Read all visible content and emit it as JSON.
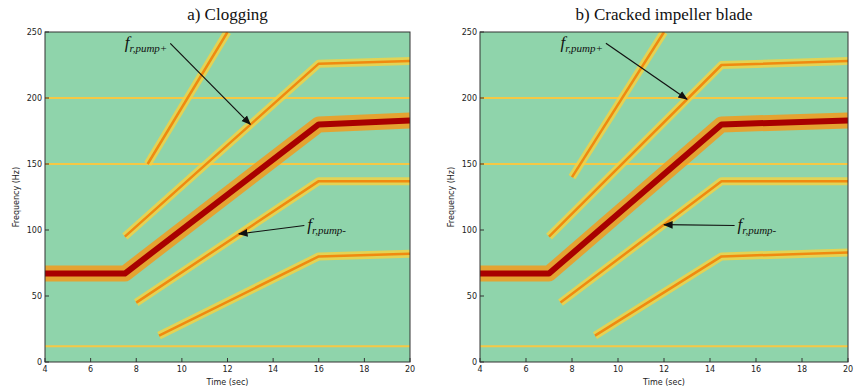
{
  "chart_data": [
    {
      "type": "spectrogram",
      "title": "a) Clogging",
      "x_label": "Time (sec)",
      "y_label": "Frequency (Hz)",
      "xlim": [
        4,
        20
      ],
      "xticks": [
        4,
        6,
        8,
        10,
        12,
        14,
        16,
        18,
        20
      ],
      "ylim": [
        0,
        250
      ],
      "yticks": [
        0,
        50,
        100,
        150,
        200,
        250
      ],
      "series": [
        {
          "color": "#f5c845",
          "line_style": "thin",
          "x": [
            4,
            20
          ],
          "values": [
            12,
            12
          ]
        },
        {
          "color": "#f5c845",
          "line_style": "thin",
          "x": [
            4,
            20
          ],
          "values": [
            150,
            150
          ]
        },
        {
          "color": "#f5c845",
          "line_style": "thin",
          "x": [
            4,
            20
          ],
          "values": [
            200,
            200
          ]
        },
        {
          "color": "#f08a10",
          "line_style": "medium",
          "x": [
            8.5,
            12
          ],
          "values": [
            150,
            250
          ]
        },
        {
          "color": "#f08a10",
          "line_style": "medium",
          "x": [
            9,
            16,
            20
          ],
          "values": [
            20,
            80,
            82
          ]
        },
        {
          "color": "#f08a10",
          "line_style": "medium",
          "x": [
            8,
            16,
            20
          ],
          "values": [
            45,
            137,
            137
          ]
        },
        {
          "color": "#f08a10",
          "line_style": "medium",
          "x": [
            7.5,
            16,
            20
          ],
          "values": [
            95,
            226,
            228
          ]
        },
        {
          "color": "#a80000",
          "line_style": "thick",
          "x": [
            4,
            7.5,
            16,
            20
          ],
          "values": [
            67,
            67,
            180,
            183
          ]
        }
      ],
      "annotations": [
        {
          "text": "f",
          "subscript": "r,pump+",
          "x": 7.5,
          "y": 238,
          "target_x": 13,
          "target_y": 180
        },
        {
          "text": "f",
          "subscript": "r,pump-",
          "x": 15.5,
          "y": 100,
          "target_x": 12.5,
          "target_y": 97
        }
      ]
    },
    {
      "type": "spectrogram",
      "title": "b) Cracked impeller blade",
      "x_label": "Time (sec)",
      "y_label": "Frequency (Hz)",
      "xlim": [
        4,
        20
      ],
      "xticks": [
        4,
        6,
        8,
        10,
        12,
        14,
        16,
        18,
        20
      ],
      "ylim": [
        0,
        250
      ],
      "yticks": [
        0,
        50,
        100,
        150,
        200,
        250
      ],
      "series": [
        {
          "color": "#f5c845",
          "line_style": "thin",
          "x": [
            4,
            20
          ],
          "values": [
            12,
            12
          ]
        },
        {
          "color": "#f5c845",
          "line_style": "thin",
          "x": [
            4,
            20
          ],
          "values": [
            150,
            150
          ]
        },
        {
          "color": "#f5c845",
          "line_style": "thin",
          "x": [
            4,
            20
          ],
          "values": [
            200,
            200
          ]
        },
        {
          "color": "#f08a10",
          "line_style": "medium",
          "x": [
            8,
            12
          ],
          "values": [
            140,
            250
          ]
        },
        {
          "color": "#f08a10",
          "line_style": "medium",
          "x": [
            9,
            14.5,
            20
          ],
          "values": [
            20,
            80,
            83
          ]
        },
        {
          "color": "#f08a10",
          "line_style": "medium",
          "x": [
            7.5,
            14.5,
            20
          ],
          "values": [
            45,
            137,
            137
          ]
        },
        {
          "color": "#f08a10",
          "line_style": "medium",
          "x": [
            7,
            14.5,
            20
          ],
          "values": [
            95,
            225,
            228
          ]
        },
        {
          "color": "#a80000",
          "line_style": "thick",
          "x": [
            4,
            7,
            14.5,
            20
          ],
          "values": [
            67,
            67,
            180,
            183
          ]
        }
      ],
      "annotations": [
        {
          "text": "f",
          "subscript": "r,pump+",
          "x": 7.5,
          "y": 238,
          "target_x": 13,
          "target_y": 199
        },
        {
          "text": "f",
          "subscript": "r,pump-",
          "x": 15.2,
          "y": 100,
          "target_x": 12,
          "target_y": 104
        }
      ]
    }
  ]
}
